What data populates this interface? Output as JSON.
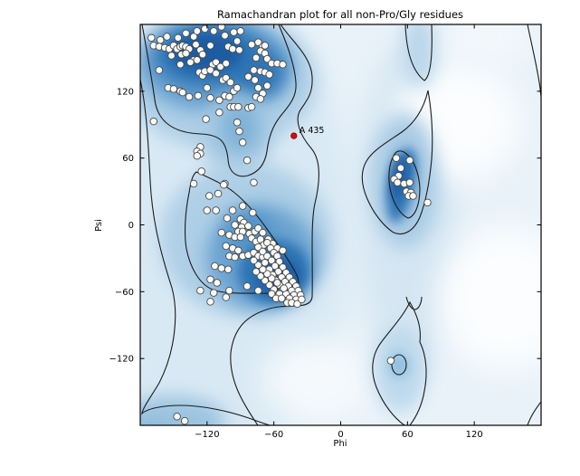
{
  "title": "Ramachandran plot for all non-Pro/Gly residues",
  "axes": {
    "xlabel": "Phi",
    "ylabel": "Psi",
    "xtick_labels": [
      "−120",
      "−60",
      "0",
      "60",
      "120"
    ],
    "ytick_labels": [
      "−120",
      "−60",
      "0",
      "60",
      "120"
    ]
  },
  "chart_data": {
    "type": "scatter",
    "title": "Ramachandran plot for all non-Pro/Gly residues",
    "xlabel": "Phi",
    "ylabel": "Psi",
    "xlim": [
      -180,
      180
    ],
    "ylim": [
      -180,
      180
    ],
    "xticks": [
      -120,
      -60,
      0,
      60,
      120
    ],
    "yticks": [
      -120,
      -60,
      0,
      60,
      120
    ],
    "grid": false,
    "legend": "none",
    "colors": {
      "residue_fill": "#fbfbf8",
      "residue_edge": "#4a4a4a",
      "outlier_fill": "#e8000b",
      "outlier_edge": "#6f0000",
      "contour_line": "#1c1c1c",
      "density_deepest": "#1a5ca3",
      "density_deep": "#2e74b5",
      "density_mid": "#6ba3d0",
      "density_light": "#aecfe6",
      "background": "#e9f2f9"
    },
    "series": [
      {
        "name": "residues",
        "marker": "circle",
        "points": [
          [
            -170,
            168
          ],
          [
            -162,
            166
          ],
          [
            -156,
            169
          ],
          [
            -146,
            168
          ],
          [
            -139,
            172
          ],
          [
            -132,
            169
          ],
          [
            -129,
            174
          ],
          [
            -122,
            176
          ],
          [
            -114,
            174
          ],
          [
            -107,
            178
          ],
          [
            -104,
            170
          ],
          [
            -96,
            173
          ],
          [
            -93,
            165
          ],
          [
            -90,
            174
          ],
          [
            -168,
            161
          ],
          [
            -163,
            160
          ],
          [
            -158,
            159
          ],
          [
            -154,
            158
          ],
          [
            -150,
            161
          ],
          [
            -147,
            158
          ],
          [
            -144,
            160
          ],
          [
            -142,
            161
          ],
          [
            -139,
            160
          ],
          [
            -136,
            158
          ],
          [
            -130,
            162
          ],
          [
            -126,
            157
          ],
          [
            -117,
            161
          ],
          [
            -101,
            160
          ],
          [
            -97,
            158
          ],
          [
            -91,
            157
          ],
          [
            -152,
            152
          ],
          [
            -143,
            153
          ],
          [
            -139,
            154
          ],
          [
            -132,
            148
          ],
          [
            -129,
            148
          ],
          [
            -124,
            153
          ],
          [
            -115,
            144
          ],
          [
            -112,
            146
          ],
          [
            -108,
            142
          ],
          [
            -103,
            145
          ],
          [
            -144,
            144
          ],
          [
            -135,
            146
          ],
          [
            -127,
            137
          ],
          [
            -124,
            134
          ],
          [
            -122,
            138
          ],
          [
            -117,
            139
          ],
          [
            -112,
            136
          ],
          [
            -106,
            130
          ],
          [
            -103,
            132
          ],
          [
            -99,
            128
          ],
          [
            -163,
            139
          ],
          [
            -155,
            123
          ],
          [
            -150,
            122
          ],
          [
            -144,
            120
          ],
          [
            -142,
            119
          ],
          [
            -136,
            115
          ],
          [
            -128,
            116
          ],
          [
            -120,
            123
          ],
          [
            -117,
            114
          ],
          [
            -109,
            112
          ],
          [
            -104,
            116
          ],
          [
            -100,
            115
          ],
          [
            -96,
            120
          ],
          [
            -93,
            123
          ],
          [
            -80,
            162
          ],
          [
            -74,
            164
          ],
          [
            -70,
            160
          ],
          [
            -68,
            161
          ],
          [
            -72,
            156
          ],
          [
            -68,
            154
          ],
          [
            -76,
            150
          ],
          [
            -66,
            149
          ],
          [
            -62,
            145
          ],
          [
            -57,
            145
          ],
          [
            -52,
            144
          ],
          [
            -78,
            139
          ],
          [
            -72,
            138
          ],
          [
            -68,
            137
          ],
          [
            -64,
            135
          ],
          [
            -83,
            133
          ],
          [
            -77,
            130
          ],
          [
            -66,
            125
          ],
          [
            -74,
            123
          ],
          [
            -70,
            118
          ],
          [
            -76,
            115
          ],
          [
            -72,
            113
          ],
          [
            -168,
            93
          ],
          [
            -121,
            95
          ],
          [
            -109,
            101
          ],
          [
            -99,
            106
          ],
          [
            -96,
            106
          ],
          [
            -92,
            106
          ],
          [
            -83,
            105
          ],
          [
            -80,
            106
          ],
          [
            -93,
            92
          ],
          [
            -91,
            84
          ],
          [
            -88,
            74
          ],
          [
            -84,
            58
          ],
          [
            -126,
            70
          ],
          [
            -129,
            66
          ],
          [
            -126,
            64
          ],
          [
            -129,
            62
          ],
          [
            -125,
            48
          ],
          [
            -104,
            37
          ],
          [
            -78,
            38
          ],
          [
            -132,
            37
          ],
          [
            -105,
            36
          ],
          [
            -118,
            26
          ],
          [
            -110,
            28
          ],
          [
            -120,
            13
          ],
          [
            -112,
            13
          ],
          [
            -97,
            13
          ],
          [
            -88,
            17
          ],
          [
            -79,
            11
          ],
          [
            -102,
            6
          ],
          [
            -90,
            5
          ],
          [
            -95,
            0
          ],
          [
            -87,
            2
          ],
          [
            -89,
            -2
          ],
          [
            -83,
            -1
          ],
          [
            -92,
            -6
          ],
          [
            -88,
            -6
          ],
          [
            -107,
            -7
          ],
          [
            -100,
            -9
          ],
          [
            -95,
            -11
          ],
          [
            -90,
            -11
          ],
          [
            -82,
            -8
          ],
          [
            -77,
            -6
          ],
          [
            -74,
            -3
          ],
          [
            -70,
            -7
          ],
          [
            -65,
            -13
          ],
          [
            -72,
            -15
          ],
          [
            -68,
            -17
          ],
          [
            -61,
            -17
          ],
          [
            -57,
            -21
          ],
          [
            -52,
            -23
          ],
          [
            -103,
            -19
          ],
          [
            -97,
            -21
          ],
          [
            -92,
            -23
          ],
          [
            -100,
            -28
          ],
          [
            -95,
            -29
          ],
          [
            -88,
            -28
          ],
          [
            -83,
            -27
          ],
          [
            -78,
            -25
          ],
          [
            -74,
            -28
          ],
          [
            -70,
            -29
          ],
          [
            -113,
            -37
          ],
          [
            -107,
            -39
          ],
          [
            -101,
            -40
          ],
          [
            -117,
            -49
          ],
          [
            -111,
            -52
          ],
          [
            -126,
            -59
          ],
          [
            -114,
            -61
          ],
          [
            -100,
            -59
          ],
          [
            -84,
            -55
          ],
          [
            -74,
            -59
          ],
          [
            -117,
            -69
          ],
          [
            -103,
            -65
          ],
          [
            -80,
            -12
          ],
          [
            -76,
            -15
          ],
          [
            -72,
            -13
          ],
          [
            -69,
            -18
          ],
          [
            -74,
            -20
          ],
          [
            -66,
            -16
          ],
          [
            -63,
            -21
          ],
          [
            -70,
            -24
          ],
          [
            -60,
            -25
          ],
          [
            -66,
            -28
          ],
          [
            -57,
            -28
          ],
          [
            -62,
            -32
          ],
          [
            -68,
            -34
          ],
          [
            -55,
            -33
          ],
          [
            -59,
            -37
          ],
          [
            -64,
            -40
          ],
          [
            -52,
            -38
          ],
          [
            -56,
            -42
          ],
          [
            -61,
            -45
          ],
          [
            -49,
            -43
          ],
          [
            -53,
            -47
          ],
          [
            -58,
            -50
          ],
          [
            -46,
            -47
          ],
          [
            -50,
            -51
          ],
          [
            -55,
            -54
          ],
          [
            -43,
            -51
          ],
          [
            -47,
            -55
          ],
          [
            -52,
            -58
          ],
          [
            -40,
            -55
          ],
          [
            -44,
            -59
          ],
          [
            -49,
            -62
          ],
          [
            -38,
            -59
          ],
          [
            -42,
            -63
          ],
          [
            -46,
            -66
          ],
          [
            -36,
            -63
          ],
          [
            -40,
            -67
          ],
          [
            -55,
            -62
          ],
          [
            -60,
            -58
          ],
          [
            -64,
            -54
          ],
          [
            -68,
            -50
          ],
          [
            -72,
            -46
          ],
          [
            -76,
            -42
          ],
          [
            -62,
            -62
          ],
          [
            -58,
            -66
          ],
          [
            -53,
            -66
          ],
          [
            -48,
            -70
          ],
          [
            -44,
            -70
          ],
          [
            -39,
            -71
          ],
          [
            -35,
            -67
          ],
          [
            -62,
            -48
          ],
          [
            -66,
            -44
          ],
          [
            -70,
            -40
          ],
          [
            -74,
            -36
          ],
          [
            -78,
            -32
          ],
          [
            -57,
            -52
          ],
          [
            -51,
            -57
          ],
          [
            50,
            60
          ],
          [
            62,
            58
          ],
          [
            54,
            51
          ],
          [
            52,
            44
          ],
          [
            48,
            41
          ],
          [
            51,
            38
          ],
          [
            57,
            37
          ],
          [
            62,
            38
          ],
          [
            59,
            30
          ],
          [
            63,
            29
          ],
          [
            61,
            26
          ],
          [
            65,
            26
          ],
          [
            78,
            20
          ],
          [
            -147,
            -172
          ],
          [
            -140,
            -176
          ],
          [
            45,
            -122
          ]
        ]
      },
      {
        "name": "highlighted-residue",
        "marker": "circle",
        "points": [
          [
            -42,
            80
          ]
        ],
        "label": "A 435"
      }
    ],
    "annotations": [
      {
        "text": "A 435",
        "phi": -42,
        "psi": 80
      }
    ]
  }
}
